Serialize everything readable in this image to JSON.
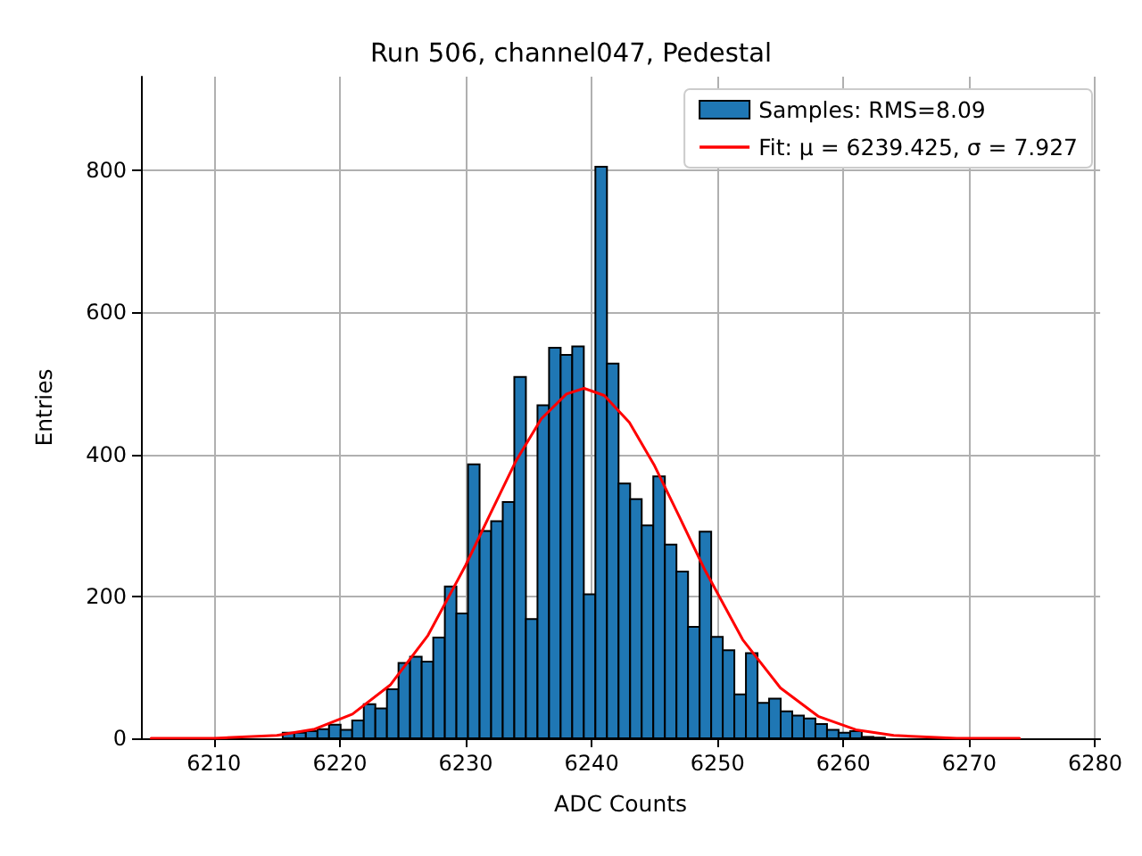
{
  "chart_data": {
    "type": "histogram",
    "title": "Run 506, channel047, Pedestal",
    "xlabel": "ADC Counts",
    "ylabel": "Entries",
    "xlim": [
      6204.2,
      6280.4
    ],
    "xticks": [
      6210,
      6220,
      6230,
      6240,
      6250,
      6260,
      6270,
      6280
    ],
    "ylim": [
      0,
      932
    ],
    "yticks": [
      0,
      200,
      400,
      600,
      800
    ],
    "grid": true,
    "legend": "top right",
    "series": [
      {
        "name": "Samples: RMS=8.09",
        "color": "#1f77b4",
        "bins": [
          6215.46,
          6216.38,
          6217.3,
          6218.22,
          6219.14,
          6220.06,
          6220.98,
          6221.9,
          6222.82,
          6223.74,
          6224.66,
          6225.58,
          6226.5,
          6227.42,
          6228.34,
          6229.26,
          6230.18,
          6231.1,
          6232.02,
          6232.94,
          6233.86,
          6234.78,
          6235.7,
          6236.62,
          6237.54,
          6238.46,
          6239.38,
          6240.3,
          6241.22,
          6242.14,
          6243.06,
          6243.98,
          6244.9,
          6245.82,
          6246.74,
          6247.66,
          6248.58,
          6249.5,
          6250.42,
          6251.34,
          6252.26,
          6253.18,
          6254.1,
          6255.02,
          6255.94,
          6256.86,
          6257.78,
          6258.7,
          6259.62,
          6260.54,
          6261.46,
          6262.38,
          6263.3
        ],
        "values": [
          8,
          8,
          10,
          13,
          19,
          12,
          25,
          48,
          42,
          69,
          106,
          115,
          108,
          142,
          214,
          176,
          386,
          292,
          306,
          333,
          509,
          168,
          469,
          550,
          540,
          552,
          203,
          805,
          528,
          359,
          337,
          300,
          369,
          273,
          235,
          157,
          291,
          143,
          124,
          62,
          120,
          50,
          56,
          38,
          32,
          28,
          20,
          12,
          8,
          10,
          2,
          1
        ]
      },
      {
        "type": "line",
        "name": "Fit: μ = 6239.425, σ = 7.927",
        "color": "#ff0000",
        "marker": "none",
        "line_style": "solid",
        "x": [
          6205,
          6210,
          6215,
          6218,
          6221,
          6224,
          6227,
          6230,
          6232,
          6234,
          6236,
          6238,
          6239.4,
          6241,
          6243,
          6245,
          6247,
          6249,
          6252,
          6255,
          6258,
          6261,
          6264,
          6269,
          6274
        ],
        "values": [
          0,
          0,
          4,
          13,
          34,
          75,
          145,
          244,
          318,
          391,
          450,
          485,
          493,
          483,
          445,
          384,
          311,
          237,
          139,
          71,
          31,
          12,
          4,
          0,
          0
        ]
      }
    ]
  }
}
